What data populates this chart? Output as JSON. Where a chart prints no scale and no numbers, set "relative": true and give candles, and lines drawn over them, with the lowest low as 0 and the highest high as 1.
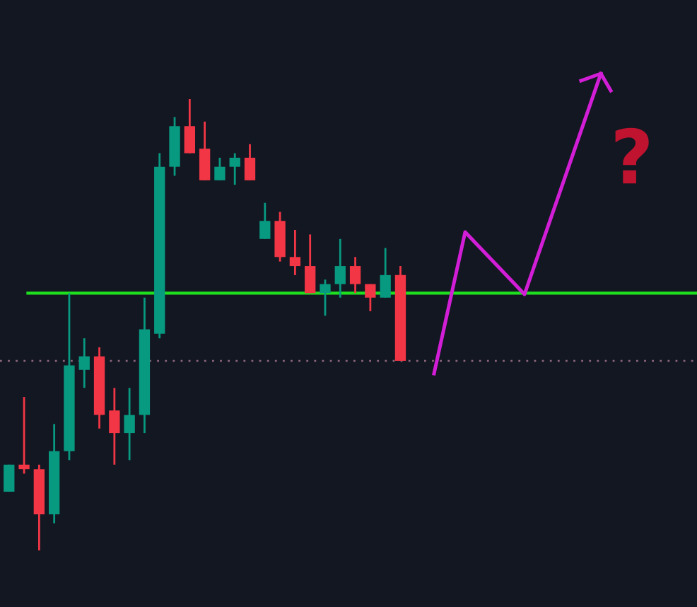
{
  "chart_data": {
    "type": "candlestick",
    "relative": true,
    "categories": [
      null,
      null,
      null,
      null,
      null,
      null,
      null,
      null,
      null,
      null,
      null,
      null,
      null,
      null,
      null,
      null,
      null,
      null,
      null,
      null,
      null,
      null,
      null,
      null,
      null,
      null,
      null
    ],
    "ohlc": [
      [
        0.13,
        0.19,
        0.13,
        0.19
      ],
      [
        0.19,
        0.34,
        0.17,
        0.18
      ],
      [
        0.18,
        0.19,
        0.0,
        0.08
      ],
      [
        0.08,
        0.28,
        0.06,
        0.22
      ],
      [
        0.22,
        0.57,
        0.2,
        0.41
      ],
      [
        0.4,
        0.47,
        0.36,
        0.43
      ],
      [
        0.43,
        0.45,
        0.27,
        0.3
      ],
      [
        0.31,
        0.36,
        0.19,
        0.26
      ],
      [
        0.26,
        0.36,
        0.2,
        0.3
      ],
      [
        0.3,
        0.56,
        0.26,
        0.49
      ],
      [
        0.48,
        0.88,
        0.47,
        0.85
      ],
      [
        0.85,
        0.96,
        0.83,
        0.94
      ],
      [
        0.94,
        1.0,
        0.88,
        0.88
      ],
      [
        0.89,
        0.95,
        0.82,
        0.82
      ],
      [
        0.82,
        0.87,
        0.82,
        0.85
      ],
      [
        0.85,
        0.88,
        0.81,
        0.87
      ],
      [
        0.87,
        0.9,
        0.82,
        0.82
      ],
      [
        0.69,
        0.77,
        0.69,
        0.73
      ],
      [
        0.73,
        0.75,
        0.64,
        0.65
      ],
      [
        0.65,
        0.71,
        0.61,
        0.63
      ],
      [
        0.63,
        0.7,
        0.57,
        0.57
      ],
      [
        0.57,
        0.6,
        0.52,
        0.59
      ],
      [
        0.59,
        0.69,
        0.56,
        0.63
      ],
      [
        0.63,
        0.65,
        0.57,
        0.59
      ],
      [
        0.59,
        0.59,
        0.53,
        0.56
      ],
      [
        0.56,
        0.67,
        0.56,
        0.61
      ],
      [
        0.61,
        0.63,
        0.42,
        0.42
      ]
    ],
    "colors": [
      "#089981",
      "#f23645",
      "#f23645",
      "#089981",
      "#089981",
      "#089981",
      "#f23645",
      "#f23645",
      "#089981",
      "#089981",
      "#089981",
      "#089981",
      "#f23645",
      "#f23645",
      "#089981",
      "#089981",
      "#f23645",
      "#089981",
      "#f23645",
      "#f23645",
      "#f23645",
      "#089981",
      "#089981",
      "#f23645",
      "#f23645",
      "#089981",
      "#f23645"
    ],
    "ref_lines": [
      {
        "axis": "y",
        "value": 0.57,
        "color": "#1fe01f",
        "line_style": "solid"
      },
      {
        "axis": "y",
        "value": 0.42,
        "color": "#8a6478",
        "line_style": "dotted"
      }
    ],
    "annotations": [
      "?"
    ],
    "grid": false
  }
}
